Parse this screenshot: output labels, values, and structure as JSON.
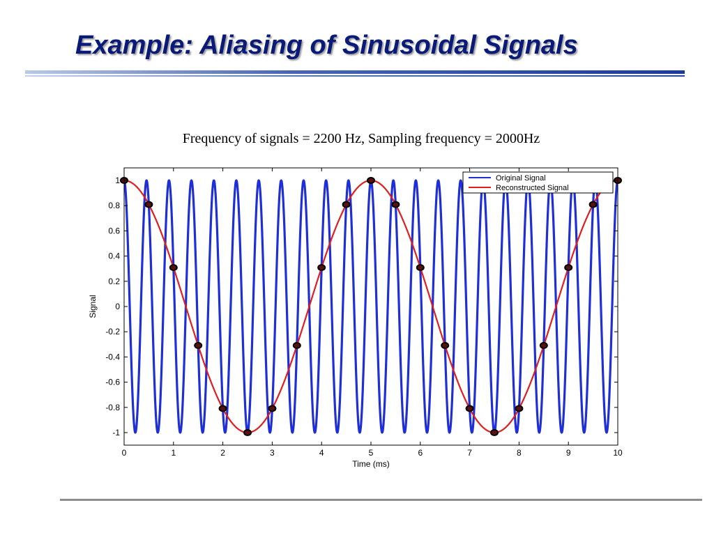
{
  "slide": {
    "title": "Example: Aliasing of Sinusoidal Signals"
  },
  "chart_data": {
    "type": "line",
    "title": "Frequency of signals = 2200 Hz, Sampling frequency = 2000Hz",
    "xlabel": "Time (ms)",
    "ylabel": "Signal",
    "xlim": [
      0,
      10
    ],
    "ylim": [
      -1,
      1
    ],
    "x_ticks": [
      "0",
      "1",
      "2",
      "3",
      "4",
      "5",
      "6",
      "7",
      "8",
      "9",
      "10"
    ],
    "y_ticks": [
      "1",
      "0.8",
      "0.6",
      "0.4",
      "0.2",
      "0",
      "-0.2",
      "-0.4",
      "-0.6",
      "-0.8",
      "-1"
    ],
    "grid": false,
    "legend_position": "top-right",
    "series": [
      {
        "name": "Original Signal",
        "color": "#1f2fd6",
        "function": "cos",
        "frequency_hz": 2200
      },
      {
        "name": "Reconstructed Signal",
        "color": "#e01e1e",
        "function": "cos",
        "frequency_hz": 200
      }
    ],
    "samples": {
      "marker_color": "#000000",
      "x": [
        0,
        0.5,
        1,
        1.5,
        2,
        2.5,
        3,
        3.5,
        4,
        4.5,
        5,
        5.5,
        6,
        6.5,
        7,
        7.5,
        8,
        8.5,
        9,
        9.5,
        10
      ],
      "y": [
        1,
        0.809,
        0.309,
        -0.309,
        -0.809,
        -1,
        -0.809,
        -0.309,
        0.309,
        0.809,
        1,
        0.809,
        0.309,
        -0.309,
        -0.809,
        -1,
        -0.809,
        -0.309,
        0.309,
        0.809,
        1
      ]
    }
  }
}
